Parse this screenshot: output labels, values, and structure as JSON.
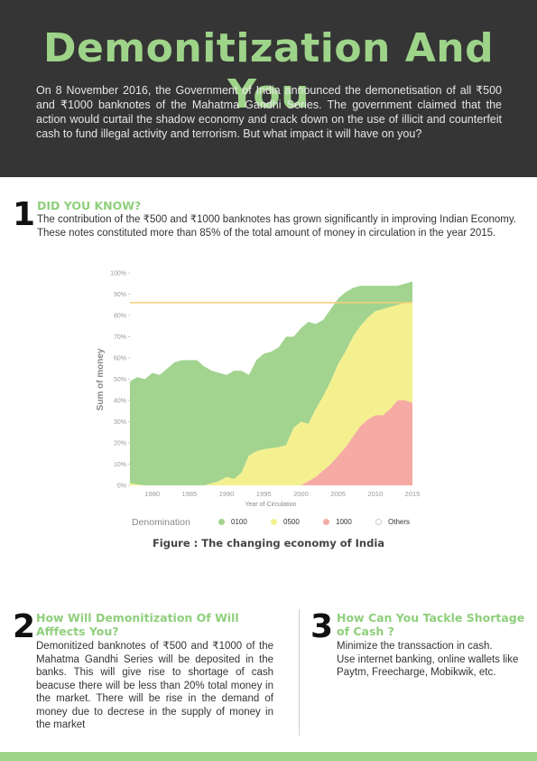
{
  "header": {
    "title": "Demonitization And You",
    "intro": "On 8 November 2016, the Government of India announced the demonetisation of all ₹500 and ₹1000 banknotes of the Mahatma Gandhi Series. The government claimed that the action would curtail the shadow economy and crack down on the use of illicit and counterfeit cash to fund illegal activity and terrorism. But what impact it will have on you?"
  },
  "section1": {
    "number": "1",
    "heading": "DID YOU KNOW?",
    "text": "The contribution of the ₹500 and ₹1000 banknotes has grown significantly in improving Indian Economy. These notes constituted more than 85% of the total amount of money in circulation in the year 2015."
  },
  "chart_data": {
    "type": "area",
    "stacked": true,
    "title": "",
    "xlabel": "Year of Circulation",
    "ylabel": "Sum of money",
    "xlim": [
      1977,
      2015
    ],
    "ylim": [
      0,
      100
    ],
    "x_ticks": [
      1980,
      1985,
      1990,
      1995,
      2000,
      2005,
      2010,
      2015
    ],
    "y_ticks": [
      0,
      10,
      20,
      30,
      40,
      50,
      60,
      70,
      80,
      90,
      100
    ],
    "y_tick_labels": [
      "0%",
      "10%",
      "20%",
      "30%",
      "40%",
      "50%",
      "60%",
      "70%",
      "80%",
      "90%",
      "100%"
    ],
    "reference_line": 86,
    "x": [
      1977,
      1978,
      1979,
      1980,
      1981,
      1982,
      1983,
      1984,
      1985,
      1986,
      1987,
      1988,
      1989,
      1990,
      1991,
      1992,
      1993,
      1994,
      1995,
      1996,
      1997,
      1998,
      1999,
      2000,
      2001,
      2002,
      2003,
      2004,
      2005,
      2006,
      2007,
      2008,
      2009,
      2010,
      2011,
      2012,
      2013,
      2014,
      2015
    ],
    "series": [
      {
        "name": "1000",
        "color": "#f5aba3",
        "values": [
          0,
          0,
          0,
          0,
          0,
          0,
          0,
          0,
          0,
          0,
          0,
          0,
          0,
          0,
          0,
          0,
          0,
          0,
          0,
          0,
          0,
          0,
          0,
          0,
          2,
          4,
          7,
          10,
          14,
          18,
          23,
          28,
          31,
          33,
          33,
          36,
          40,
          40,
          39
        ]
      },
      {
        "name": "0500",
        "color": "#f5f08f",
        "values": [
          1,
          0.5,
          0,
          0,
          0,
          0,
          0,
          0,
          0,
          0,
          0,
          1,
          2,
          4,
          3,
          6,
          14,
          16,
          17,
          17.5,
          18,
          19,
          27,
          30,
          27,
          32,
          35,
          39,
          43,
          45,
          47,
          47,
          48,
          49,
          50,
          48,
          45,
          46,
          47
        ]
      },
      {
        "name": "0100",
        "color": "#a2d48f",
        "values": [
          48,
          50.5,
          50,
          53,
          52,
          55,
          58,
          59,
          59,
          59,
          56,
          53,
          51,
          48,
          51,
          48,
          38,
          43,
          45,
          45.5,
          47,
          51,
          43,
          44,
          48,
          40,
          36,
          34,
          31,
          28,
          23,
          19,
          15,
          12,
          11,
          10,
          9,
          9,
          10
        ]
      },
      {
        "name": "Others",
        "color": "#ffffff",
        "values": [
          51,
          49,
          50,
          47,
          48,
          45,
          42,
          41,
          41,
          41,
          44,
          46,
          47,
          48,
          46,
          46,
          48,
          41,
          38,
          37,
          35,
          30,
          30,
          26,
          23,
          24,
          22,
          17,
          12,
          9,
          7,
          6,
          6,
          6,
          6,
          6,
          6,
          5,
          4
        ]
      }
    ],
    "legend": {
      "title": "Denomination",
      "placement": "bottom",
      "items": [
        {
          "label": "0100",
          "color": "#a2d48f"
        },
        {
          "label": "0500",
          "color": "#f5f08f"
        },
        {
          "label": "1000",
          "color": "#f5aba3"
        },
        {
          "label": "Others",
          "color": "#ffffff"
        }
      ]
    }
  },
  "figure_caption": "Figure : The changing economy of India",
  "section2": {
    "number": "2",
    "heading": "How Will Demonitization Of Will Afffects You?",
    "text": "Demonitized banknotes of ₹500 and ₹1000 of the Mahatma Gandhi Series will be deposited in the banks. This will give rise to shortage of cash beacuse there will be less than 20% total money in the market. There will be rise in the demand of money due to decrese in the supply of money in the market"
  },
  "section3": {
    "number": "3",
    "heading": "How Can You Tackle Shortage of Cash ?",
    "text": "Minimize the transsaction in cash.\nUse internet banking, online wallets like Paytm, Freecharge, Mobikwik, etc."
  },
  "colors": {
    "header_bg": "#353535",
    "accent_green": "#9ed489",
    "reference_line": "#f6cf78"
  }
}
